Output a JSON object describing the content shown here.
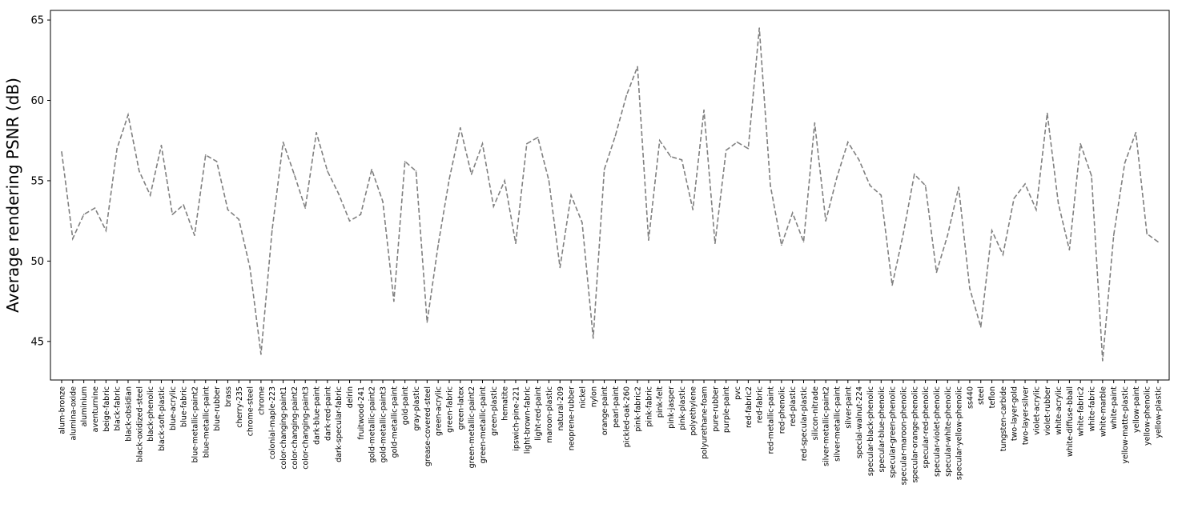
{
  "chart_data": {
    "type": "line",
    "title": "",
    "xlabel": "",
    "ylabel": "Average rendering PSNR (dB)",
    "ylim": [
      42.6,
      65.6
    ],
    "yticks": [
      45,
      50,
      55,
      60,
      65
    ],
    "grid": false,
    "line_color": "#808080",
    "line_style": "dashed",
    "categories": [
      "alum-bronze",
      "alumina-oxide",
      "aluminium",
      "aventurnine",
      "beige-fabric",
      "black-fabric",
      "black-obsidian",
      "black-oxidized-steel",
      "black-phenolic",
      "black-soft-plastic",
      "blue-acrylic",
      "blue-fabric",
      "blue-metallic-paint2",
      "blue-metallic-paint",
      "blue-rubber",
      "brass",
      "cherry-235",
      "chrome-steel",
      "chrome",
      "colonial-maple-223",
      "color-changing-paint1",
      "color-changing-paint2",
      "color-changing-paint3",
      "dark-blue-paint",
      "dark-red-paint",
      "dark-specular-fabric",
      "delrin",
      "fruitwood-241",
      "gold-metallic-paint2",
      "gold-metallic-paint3",
      "gold-metallic-paint",
      "gold-paint",
      "gray-plastic",
      "grease-covered-steel",
      "green-acrylic",
      "green-fabric",
      "green-latex",
      "green-metallic-paint2",
      "green-metallic-paint",
      "green-plastic",
      "hematite",
      "ipswich-pine-221",
      "light-brown-fabric",
      "light-red-paint",
      "maroon-plastic",
      "natural-209",
      "neoprene-rubber",
      "nickel",
      "nylon",
      "orange-paint",
      "pearl-paint",
      "pickled-oak-260",
      "pink-fabric2",
      "pink-fabric",
      "pink-felt",
      "pink-jasper",
      "pink-plastic",
      "polyethylene",
      "polyurethane-foam",
      "pure-rubber",
      "purple-paint",
      "pvc",
      "red-fabric2",
      "red-fabric",
      "red-metallic-paint",
      "red-phenolic",
      "red-plastic",
      "red-specular-plastic",
      "silicon-nitrade",
      "silver-metallic-paint2",
      "silver-metallic-paint",
      "silver-paint",
      "special-walnut-224",
      "specular-black-phenolic",
      "specular-blue-phenolic",
      "specular-green-phenolic",
      "specular-maroon-phenolic",
      "specular-orange-phenolic",
      "specular-red-phenolic",
      "specular-violet-phenolic",
      "specular-white-phenolic",
      "specular-yellow-phenolic",
      "ss440",
      "steel",
      "teflon",
      "tungsten-carbide",
      "two-layer-gold",
      "two-layer-silver",
      "violet-acrylic",
      "violet-rubber",
      "white-acrylic",
      "white-diffuse-bball",
      "white-fabric2",
      "white-fabric",
      "white-marble",
      "white-paint",
      "yellow-matte-plastic",
      "yellow-paint",
      "yellow-phenolic",
      "yellow-plastic"
    ],
    "series": [
      {
        "values": [
          56.8,
          51.4,
          52.9,
          53.3,
          51.9,
          57.0,
          59.1,
          55.6,
          54.1,
          57.2,
          52.9,
          53.5,
          51.6,
          56.6,
          56.2,
          53.2,
          52.6,
          49.6,
          44.2,
          51.9,
          57.4,
          55.4,
          53.3,
          58.0,
          55.6,
          54.2,
          52.5,
          52.9,
          55.7,
          53.7,
          47.5,
          56.2,
          55.6,
          46.2,
          51.0,
          55.1,
          58.3,
          55.4,
          57.3,
          53.4,
          55.0,
          51.1,
          57.3,
          57.7,
          55.0,
          49.6,
          54.1,
          52.4,
          45.2,
          55.7,
          57.8,
          60.3,
          62.1,
          51.3,
          57.5,
          56.5,
          56.3,
          53.2,
          59.4,
          51.1,
          56.9,
          57.4,
          57.0,
          64.5,
          54.7,
          51.0,
          53.0,
          51.2,
          58.6,
          52.5,
          55.2,
          57.4,
          56.3,
          54.7,
          54.1,
          48.5,
          51.7,
          55.4,
          54.7,
          49.3,
          51.6,
          54.6,
          48.3,
          45.9,
          51.9,
          50.4,
          53.9,
          54.8,
          53.2,
          59.2,
          53.6,
          50.7,
          57.3,
          55.3,
          43.8,
          51.6,
          56.1,
          58.0,
          51.7,
          51.2
        ]
      }
    ]
  }
}
